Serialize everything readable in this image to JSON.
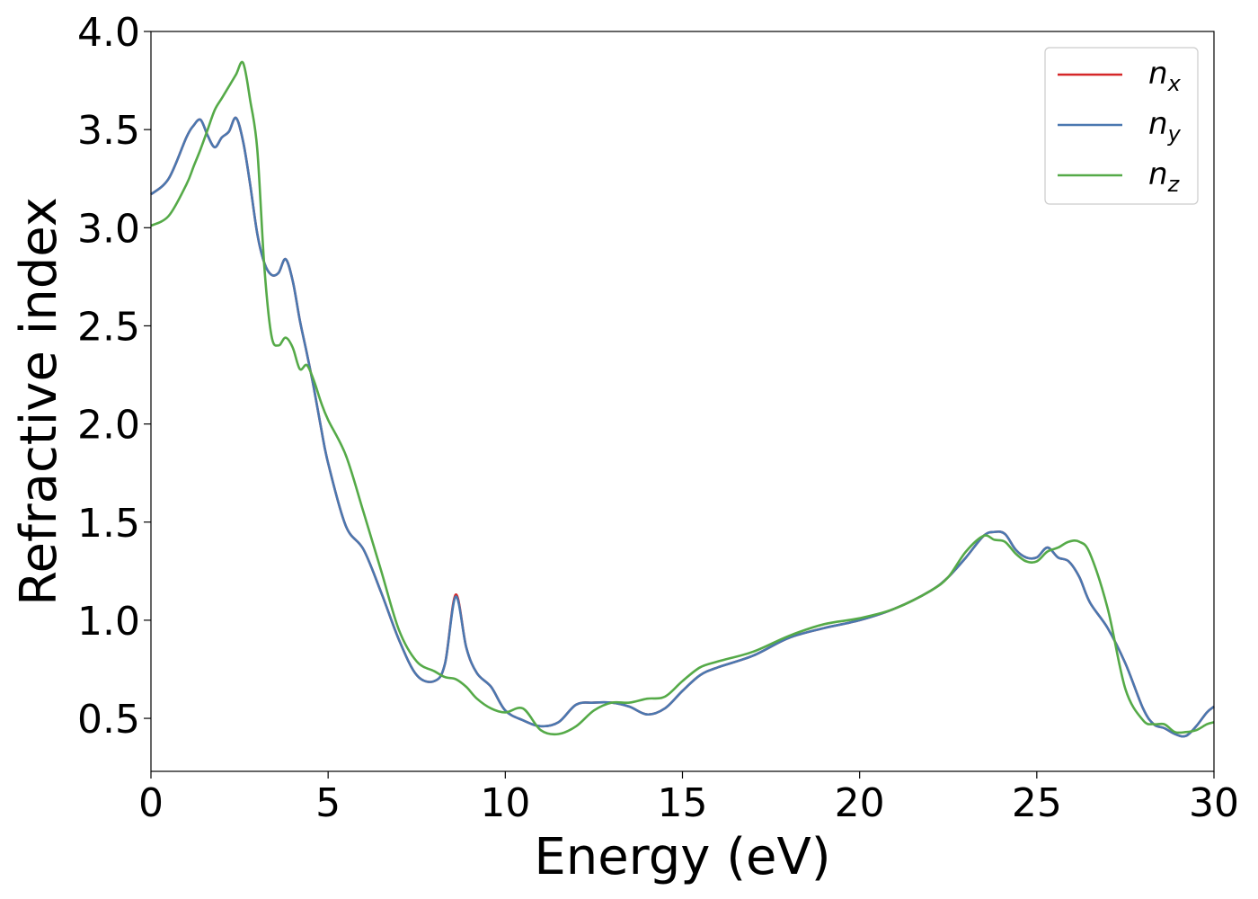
{
  "chart_data": {
    "type": "line",
    "title": "",
    "xlabel": "Energy (eV)",
    "ylabel": "Refractive index",
    "xlim": [
      0,
      30
    ],
    "ylim": [
      0.23,
      4.0
    ],
    "xticks": [
      0,
      5,
      10,
      15,
      20,
      25,
      30
    ],
    "xtick_labels": [
      "0",
      "5",
      "10",
      "15",
      "20",
      "25",
      "30"
    ],
    "yticks": [
      0.5,
      1.0,
      1.5,
      2.0,
      2.5,
      3.0,
      3.5,
      4.0
    ],
    "ytick_labels": [
      "0.5",
      "1.0",
      "1.5",
      "2.0",
      "2.5",
      "3.0",
      "3.5",
      "4.0"
    ],
    "grid": false,
    "legend_position": "top-right",
    "x": [
      0,
      0.5,
      1.0,
      1.2,
      1.4,
      1.6,
      1.8,
      2.0,
      2.2,
      2.4,
      2.6,
      2.8,
      3.0,
      3.2,
      3.4,
      3.6,
      3.8,
      4.0,
      4.2,
      4.4,
      4.6,
      4.8,
      5.0,
      5.5,
      6.0,
      6.5,
      7.0,
      7.5,
      8.0,
      8.3,
      8.6,
      8.9,
      9.2,
      9.6,
      10.0,
      10.5,
      11.0,
      11.5,
      12.0,
      12.5,
      13.0,
      13.5,
      14.0,
      14.5,
      15.0,
      15.5,
      16.0,
      17.0,
      18.0,
      19.0,
      20.0,
      21.0,
      22.0,
      22.5,
      23.0,
      23.5,
      23.8,
      24.1,
      24.4,
      24.7,
      25.0,
      25.3,
      25.6,
      25.9,
      26.2,
      26.5,
      27.0,
      27.5,
      28.0,
      28.3,
      28.6,
      28.9,
      29.2,
      29.5,
      29.8,
      30.0
    ],
    "series": [
      {
        "name": "n_x",
        "label_base": "n",
        "label_sub": "x",
        "color": "#d62728",
        "values": [
          3.17,
          3.25,
          3.46,
          3.52,
          3.55,
          3.47,
          3.41,
          3.46,
          3.49,
          3.56,
          3.44,
          3.22,
          2.97,
          2.82,
          2.76,
          2.77,
          2.84,
          2.73,
          2.53,
          2.36,
          2.18,
          1.98,
          1.8,
          1.48,
          1.36,
          1.14,
          0.9,
          0.72,
          0.69,
          0.78,
          1.13,
          0.86,
          0.73,
          0.66,
          0.54,
          0.49,
          0.46,
          0.48,
          0.57,
          0.58,
          0.58,
          0.56,
          0.52,
          0.55,
          0.64,
          0.72,
          0.76,
          0.82,
          0.91,
          0.96,
          1.0,
          1.06,
          1.15,
          1.22,
          1.32,
          1.43,
          1.45,
          1.44,
          1.36,
          1.32,
          1.32,
          1.37,
          1.32,
          1.3,
          1.22,
          1.09,
          0.96,
          0.78,
          0.55,
          0.47,
          0.45,
          0.42,
          0.41,
          0.46,
          0.53,
          0.56
        ]
      },
      {
        "name": "n_y",
        "label_base": "n",
        "label_sub": "y",
        "color": "#4a78b0",
        "values": [
          3.17,
          3.25,
          3.46,
          3.52,
          3.55,
          3.47,
          3.41,
          3.46,
          3.49,
          3.56,
          3.44,
          3.22,
          2.97,
          2.82,
          2.76,
          2.77,
          2.84,
          2.73,
          2.53,
          2.36,
          2.18,
          1.98,
          1.8,
          1.48,
          1.36,
          1.14,
          0.9,
          0.72,
          0.69,
          0.78,
          1.12,
          0.86,
          0.73,
          0.66,
          0.54,
          0.49,
          0.46,
          0.48,
          0.57,
          0.58,
          0.58,
          0.56,
          0.52,
          0.55,
          0.64,
          0.72,
          0.76,
          0.82,
          0.91,
          0.96,
          1.0,
          1.06,
          1.15,
          1.22,
          1.32,
          1.43,
          1.45,
          1.44,
          1.36,
          1.32,
          1.32,
          1.37,
          1.32,
          1.3,
          1.22,
          1.09,
          0.96,
          0.78,
          0.55,
          0.47,
          0.45,
          0.42,
          0.41,
          0.46,
          0.53,
          0.56
        ]
      },
      {
        "name": "n_z",
        "label_base": "n",
        "label_sub": "z",
        "color": "#55aa48",
        "values": [
          3.01,
          3.06,
          3.22,
          3.31,
          3.4,
          3.5,
          3.6,
          3.66,
          3.72,
          3.78,
          3.84,
          3.65,
          3.4,
          2.8,
          2.45,
          2.4,
          2.44,
          2.39,
          2.28,
          2.3,
          2.22,
          2.11,
          2.02,
          1.84,
          1.55,
          1.25,
          0.95,
          0.79,
          0.74,
          0.71,
          0.7,
          0.66,
          0.6,
          0.55,
          0.53,
          0.55,
          0.44,
          0.42,
          0.46,
          0.54,
          0.58,
          0.58,
          0.6,
          0.61,
          0.69,
          0.76,
          0.79,
          0.84,
          0.92,
          0.98,
          1.01,
          1.06,
          1.15,
          1.22,
          1.35,
          1.43,
          1.41,
          1.4,
          1.34,
          1.3,
          1.3,
          1.35,
          1.37,
          1.4,
          1.4,
          1.34,
          1.06,
          0.65,
          0.49,
          0.47,
          0.47,
          0.43,
          0.43,
          0.44,
          0.47,
          0.48
        ]
      }
    ]
  }
}
